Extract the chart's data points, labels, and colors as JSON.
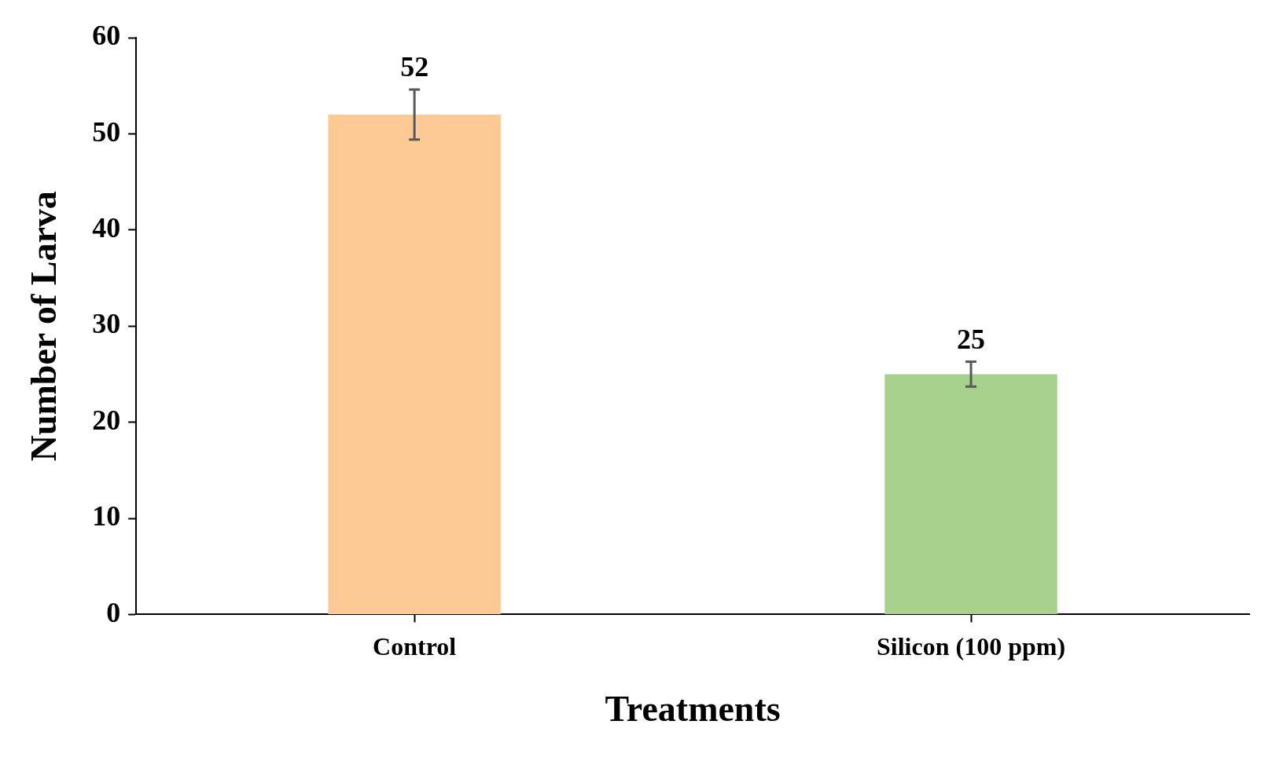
{
  "chart_data": {
    "type": "bar",
    "xlabel": "Treatments",
    "ylabel": "Number of Larva",
    "categories": [
      "Control",
      "Silicon (100 ppm)"
    ],
    "values": [
      52,
      25
    ],
    "colors": [
      "#fdca96",
      "#a9d18e"
    ],
    "errors": [
      2.6,
      1.3
    ],
    "ylim": [
      0,
      60
    ],
    "yticks": [
      0,
      10,
      20,
      30,
      40,
      50,
      60
    ],
    "grid": false,
    "legend": false,
    "data_labels": true
  }
}
